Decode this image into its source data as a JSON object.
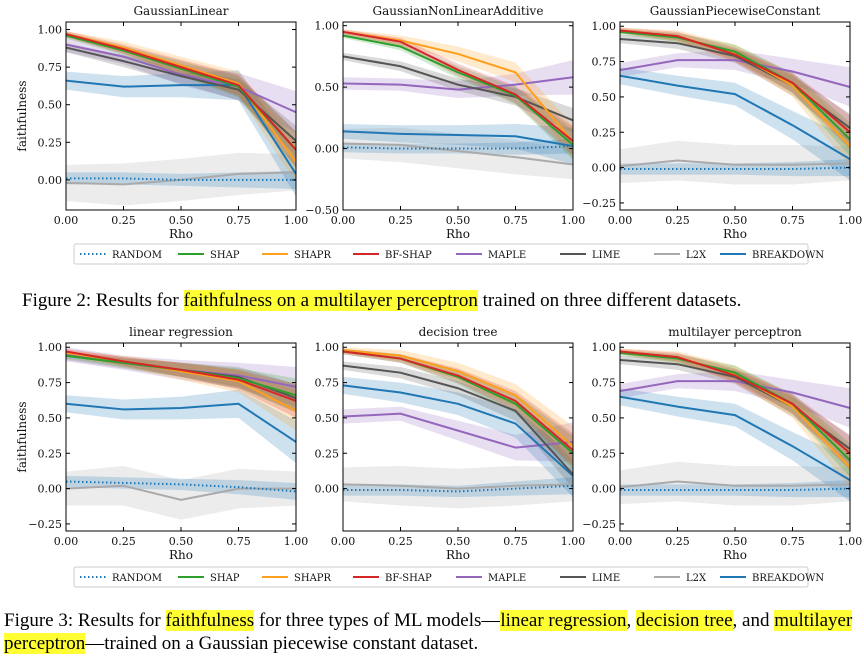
{
  "figure2": {
    "caption": {
      "prefix": "Figure 2: Results for ",
      "highlight": "faithfulness on a multilayer perceptron",
      "suffix": " trained on three different datasets."
    },
    "legend": [
      "RANDOM",
      "SHAP",
      "SHAPR",
      "BF-SHAP",
      "MAPLE",
      "LIME",
      "L2X",
      "BREAKDOWN"
    ]
  },
  "figure3": {
    "caption": {
      "p1": "Figure 3: Results for ",
      "h1": "faithfulness",
      "p2": " for three types of ML models—",
      "h2": "linear regression",
      "p3": ", ",
      "h3": "decision tree",
      "p4": ", and ",
      "h4": "multilayer perceptron",
      "p5": "—trained on a Gaussian piecewise constant dataset."
    },
    "legend": [
      "RANDOM",
      "SHAP",
      "SHAPR",
      "BF-SHAP",
      "MAPLE",
      "LIME",
      "L2X",
      "BREAKDOWN"
    ]
  },
  "colors": {
    "RANDOM": "#1f77b4",
    "SHAP": "#2ca02c",
    "SHAPR": "#ff9f1c",
    "BF-SHAP": "#d62728",
    "MAPLE": "#9467bd",
    "LIME": "#555555",
    "L2X": "#aaaaaa",
    "BREAKDOWN": "#1f77b4",
    "highlight": "#ffff33"
  },
  "chart_data": [
    {
      "type": "line",
      "title": "GaussianLinear",
      "xlabel": "Rho",
      "ylabel": "faithfulness",
      "xlim": [
        0,
        1
      ],
      "ylim": [
        -0.2,
        1.05
      ],
      "xticks": [
        "0.00",
        "0.25",
        "0.50",
        "0.75",
        "1.00"
      ],
      "yticks": [
        "0.00",
        "0.25",
        "0.50",
        "0.75",
        "1.00"
      ],
      "x": [
        0,
        0.25,
        0.5,
        0.75,
        1.0
      ],
      "series": [
        {
          "name": "RANDOM",
          "values": [
            0.01,
            0.01,
            0.0,
            0.0,
            0.0
          ]
        },
        {
          "name": "SHAP",
          "values": [
            0.96,
            0.86,
            0.74,
            0.62,
            0.2
          ]
        },
        {
          "name": "SHAPR",
          "values": [
            0.97,
            0.88,
            0.76,
            0.64,
            0.12
          ]
        },
        {
          "name": "BF-SHAP",
          "values": [
            0.97,
            0.87,
            0.75,
            0.63,
            0.2
          ]
        },
        {
          "name": "MAPLE",
          "values": [
            0.9,
            0.82,
            0.7,
            0.62,
            0.45
          ]
        },
        {
          "name": "LIME",
          "values": [
            0.88,
            0.79,
            0.69,
            0.6,
            0.26
          ]
        },
        {
          "name": "L2X",
          "values": [
            -0.02,
            -0.03,
            0.0,
            0.04,
            0.05
          ]
        },
        {
          "name": "BREAKDOWN",
          "values": [
            0.66,
            0.62,
            0.63,
            0.63,
            0.04
          ]
        }
      ]
    },
    {
      "type": "line",
      "title": "GaussianNonLinearAdditive",
      "xlabel": "Rho",
      "ylabel": "",
      "xlim": [
        0,
        1
      ],
      "ylim": [
        -0.5,
        1.03
      ],
      "xticks": [
        "0.00",
        "0.25",
        "0.50",
        "0.75",
        "1.00"
      ],
      "yticks": [
        "−0.50",
        "0.00",
        "0.50",
        "1.00"
      ],
      "x": [
        0,
        0.25,
        0.5,
        0.75,
        1.0
      ],
      "series": [
        {
          "name": "RANDOM",
          "values": [
            0.01,
            0.0,
            0.0,
            0.0,
            0.02
          ]
        },
        {
          "name": "SHAP",
          "values": [
            0.92,
            0.83,
            0.62,
            0.43,
            0.03
          ]
        },
        {
          "name": "SHAPR",
          "values": [
            0.95,
            0.88,
            0.77,
            0.62,
            0.05
          ]
        },
        {
          "name": "BF-SHAP",
          "values": [
            0.95,
            0.87,
            0.64,
            0.44,
            0.06
          ]
        },
        {
          "name": "MAPLE",
          "values": [
            0.53,
            0.52,
            0.48,
            0.52,
            0.58
          ]
        },
        {
          "name": "LIME",
          "values": [
            0.75,
            0.67,
            0.52,
            0.42,
            0.23
          ]
        },
        {
          "name": "L2X",
          "values": [
            0.04,
            0.03,
            -0.02,
            -0.07,
            -0.13
          ]
        },
        {
          "name": "BREAKDOWN",
          "values": [
            0.14,
            0.12,
            0.11,
            0.1,
            0.02
          ]
        }
      ]
    },
    {
      "type": "line",
      "title": "GaussianPiecewiseConstant",
      "xlabel": "Rho",
      "ylabel": "",
      "xlim": [
        0,
        1
      ],
      "ylim": [
        -0.3,
        1.03
      ],
      "xticks": [
        "0.00",
        "0.25",
        "0.50",
        "0.75",
        "1.00"
      ],
      "yticks": [
        "−0.25",
        "0.00",
        "0.25",
        "0.50",
        "0.75",
        "1.00"
      ],
      "x": [
        0,
        0.25,
        0.5,
        0.75,
        1.0
      ],
      "series": [
        {
          "name": "RANDOM",
          "values": [
            -0.01,
            -0.01,
            -0.01,
            -0.01,
            0.0
          ]
        },
        {
          "name": "SHAP",
          "values": [
            0.96,
            0.92,
            0.82,
            0.6,
            0.2
          ]
        },
        {
          "name": "SHAPR",
          "values": [
            0.97,
            0.93,
            0.81,
            0.58,
            0.15
          ]
        },
        {
          "name": "BF-SHAP",
          "values": [
            0.97,
            0.93,
            0.8,
            0.6,
            0.25
          ]
        },
        {
          "name": "MAPLE",
          "values": [
            0.69,
            0.76,
            0.76,
            0.68,
            0.57
          ]
        },
        {
          "name": "LIME",
          "values": [
            0.91,
            0.88,
            0.79,
            0.58,
            0.28
          ]
        },
        {
          "name": "L2X",
          "values": [
            0.01,
            0.05,
            0.02,
            0.02,
            0.03
          ]
        },
        {
          "name": "BREAKDOWN",
          "values": [
            0.65,
            0.58,
            0.52,
            0.3,
            0.06
          ]
        }
      ]
    },
    {
      "type": "line",
      "title": "linear regression",
      "xlabel": "Rho",
      "ylabel": "faithfulness",
      "xlim": [
        0,
        1
      ],
      "ylim": [
        -0.3,
        1.03
      ],
      "xticks": [
        "0.00",
        "0.25",
        "0.50",
        "0.75",
        "1.00"
      ],
      "yticks": [
        "−0.25",
        "0.00",
        "0.25",
        "0.50",
        "0.75",
        "1.00"
      ],
      "x": [
        0,
        0.25,
        0.5,
        0.75,
        1.0
      ],
      "series": [
        {
          "name": "RANDOM",
          "values": [
            0.05,
            0.04,
            0.03,
            0.01,
            -0.02
          ]
        },
        {
          "name": "SHAP",
          "values": [
            0.94,
            0.89,
            0.84,
            0.78,
            0.66
          ]
        },
        {
          "name": "SHAPR",
          "values": [
            0.96,
            0.9,
            0.83,
            0.76,
            0.55
          ]
        },
        {
          "name": "BF-SHAP",
          "values": [
            0.97,
            0.9,
            0.84,
            0.77,
            0.62
          ]
        },
        {
          "name": "MAPLE",
          "values": [
            0.95,
            0.89,
            0.84,
            0.8,
            0.72
          ]
        },
        {
          "name": "LIME",
          "values": [
            0.94,
            0.89,
            0.84,
            0.79,
            0.64
          ]
        },
        {
          "name": "L2X",
          "values": [
            0.0,
            0.02,
            -0.08,
            0.0,
            0.0
          ]
        },
        {
          "name": "BREAKDOWN",
          "values": [
            0.6,
            0.56,
            0.57,
            0.6,
            0.33
          ]
        }
      ]
    },
    {
      "type": "line",
      "title": "decision tree",
      "xlabel": "Rho",
      "ylabel": "",
      "xlim": [
        0,
        1
      ],
      "ylim": [
        -0.3,
        1.03
      ],
      "xticks": [
        "0.00",
        "0.25",
        "0.50",
        "0.75",
        "1.00"
      ],
      "yticks": [
        "0.00",
        "0.25",
        "0.50",
        "0.75",
        "1.00"
      ],
      "x": [
        0,
        0.25,
        0.5,
        0.75,
        1.0
      ],
      "series": [
        {
          "name": "RANDOM",
          "values": [
            -0.01,
            -0.01,
            -0.02,
            0.0,
            0.02
          ]
        },
        {
          "name": "SHAP",
          "values": [
            0.97,
            0.92,
            0.79,
            0.6,
            0.25
          ]
        },
        {
          "name": "SHAPR",
          "values": [
            0.98,
            0.94,
            0.83,
            0.66,
            0.3
          ]
        },
        {
          "name": "BF-SHAP",
          "values": [
            0.97,
            0.92,
            0.8,
            0.62,
            0.27
          ]
        },
        {
          "name": "MAPLE",
          "values": [
            0.51,
            0.53,
            0.41,
            0.29,
            0.33
          ]
        },
        {
          "name": "LIME",
          "values": [
            0.87,
            0.82,
            0.71,
            0.55,
            0.1
          ]
        },
        {
          "name": "L2X",
          "values": [
            0.03,
            0.02,
            0.0,
            0.02,
            0.03
          ]
        },
        {
          "name": "BREAKDOWN",
          "values": [
            0.73,
            0.68,
            0.6,
            0.46,
            0.09
          ]
        }
      ]
    },
    {
      "type": "line",
      "title": "multilayer perceptron",
      "xlabel": "Rho",
      "ylabel": "",
      "xlim": [
        0,
        1
      ],
      "ylim": [
        -0.3,
        1.03
      ],
      "xticks": [
        "0.00",
        "0.25",
        "0.50",
        "0.75",
        "1.00"
      ],
      "yticks": [
        "−0.25",
        "0.00",
        "0.25",
        "0.50",
        "0.75",
        "1.00"
      ],
      "x": [
        0,
        0.25,
        0.5,
        0.75,
        1.0
      ],
      "series": [
        {
          "name": "RANDOM",
          "values": [
            -0.01,
            -0.01,
            -0.01,
            -0.01,
            0.0
          ]
        },
        {
          "name": "SHAP",
          "values": [
            0.96,
            0.92,
            0.82,
            0.6,
            0.2
          ]
        },
        {
          "name": "SHAPR",
          "values": [
            0.97,
            0.93,
            0.81,
            0.58,
            0.15
          ]
        },
        {
          "name": "BF-SHAP",
          "values": [
            0.97,
            0.93,
            0.8,
            0.6,
            0.25
          ]
        },
        {
          "name": "MAPLE",
          "values": [
            0.69,
            0.76,
            0.76,
            0.68,
            0.57
          ]
        },
        {
          "name": "LIME",
          "values": [
            0.91,
            0.88,
            0.79,
            0.58,
            0.28
          ]
        },
        {
          "name": "L2X",
          "values": [
            0.01,
            0.05,
            0.02,
            0.02,
            0.03
          ]
        },
        {
          "name": "BREAKDOWN",
          "values": [
            0.65,
            0.58,
            0.52,
            0.3,
            0.06
          ]
        }
      ]
    }
  ]
}
